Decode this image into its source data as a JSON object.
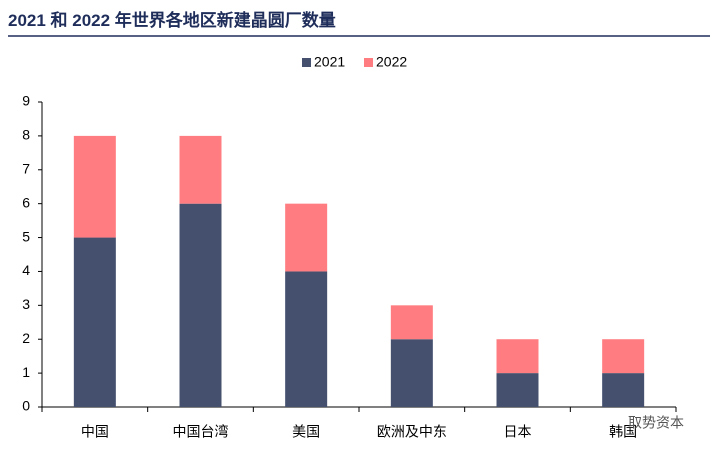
{
  "chart_data": {
    "type": "stacked_bar",
    "title": "2021 和 2022 年世界各地区新建晶圆厂数量",
    "categories": [
      "中国",
      "中国台湾",
      "美国",
      "欧洲及中东",
      "日本",
      "韩国"
    ],
    "series": [
      {
        "name": "2021",
        "color": "#44506e",
        "values": [
          5,
          6,
          4,
          2,
          1,
          1
        ]
      },
      {
        "name": "2022",
        "color": "#ff7c80",
        "values": [
          3,
          2,
          2,
          1,
          1,
          1
        ]
      }
    ],
    "ylim": [
      0,
      9
    ],
    "yticks": [
      0,
      1,
      2,
      3,
      4,
      5,
      6,
      7,
      8,
      9
    ],
    "grid": false,
    "legend": "top",
    "watermark": "取势资本"
  }
}
